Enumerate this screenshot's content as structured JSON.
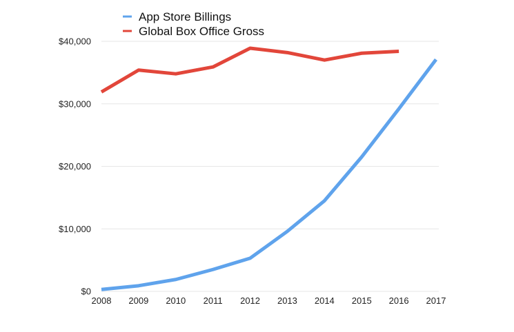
{
  "chart_data": {
    "type": "line",
    "title": "",
    "xlabel": "",
    "ylabel": "",
    "x": [
      2008,
      2009,
      2010,
      2011,
      2012,
      2013,
      2014,
      2015,
      2016,
      2017
    ],
    "x_tick_labels": [
      "2008",
      "2009",
      "2010",
      "2011",
      "2012",
      "2013",
      "2014",
      "2015",
      "2016",
      "2017"
    ],
    "ylim": [
      0,
      40000
    ],
    "y_ticks": [
      0,
      10000,
      20000,
      30000,
      40000
    ],
    "y_tick_labels": [
      "$0",
      "$10,000",
      "$20,000",
      "$30,000",
      "$40,000"
    ],
    "grid": true,
    "legend_position": "top-left",
    "series": [
      {
        "name": "App Store Billings",
        "color": "#5fa3ec",
        "values": [
          300,
          900,
          1900,
          3500,
          5300,
          9600,
          14500,
          21500,
          29200,
          37100
        ]
      },
      {
        "name": "Global Box Office Gross",
        "color": "#e2463a",
        "values": [
          31900,
          35400,
          34800,
          35900,
          38900,
          38200,
          37000,
          38100,
          38400,
          null
        ]
      }
    ]
  }
}
